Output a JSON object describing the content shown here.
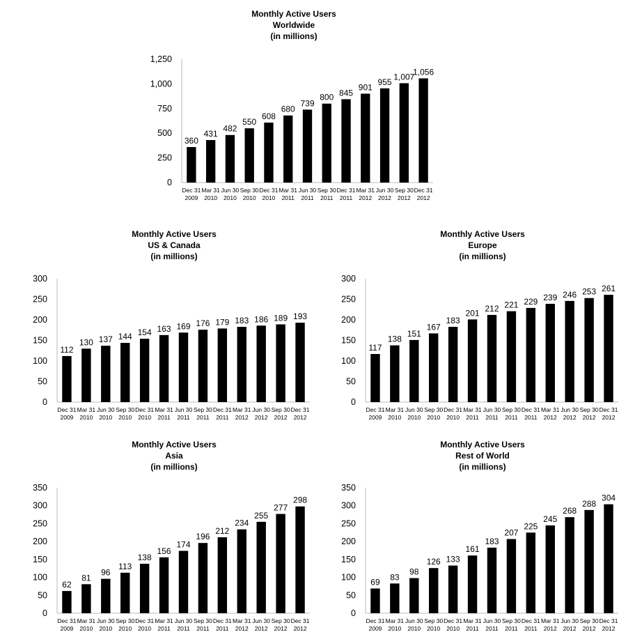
{
  "chart_data": [
    {
      "type": "bar",
      "title": [
        "Monthly Active Users",
        "Worldwide",
        "(in millions)"
      ],
      "categories": [
        [
          "Dec 31",
          "2009"
        ],
        [
          "Mar 31",
          "2010"
        ],
        [
          "Jun 30",
          "2010"
        ],
        [
          "Sep 30",
          "2010"
        ],
        [
          "Dec 31",
          "2010"
        ],
        [
          "Mar 31",
          "2011"
        ],
        [
          "Jun 30",
          "2011"
        ],
        [
          "Sep 30",
          "2011"
        ],
        [
          "Dec 31",
          "2011"
        ],
        [
          "Mar 31",
          "2012"
        ],
        [
          "Jun 30",
          "2012"
        ],
        [
          "Sep 30",
          "2012"
        ],
        [
          "Dec 31",
          "2012"
        ]
      ],
      "values": [
        360,
        431,
        482,
        550,
        608,
        680,
        739,
        800,
        845,
        901,
        955,
        1007,
        1056
      ],
      "ylim": [
        0,
        1250
      ],
      "yticks": [
        0,
        250,
        500,
        750,
        1000,
        1250
      ],
      "grid": false,
      "bar_color": "#000000"
    },
    {
      "type": "bar",
      "title": [
        "Monthly Active Users",
        "US & Canada",
        "(in millions)"
      ],
      "categories": [
        [
          "Dec 31",
          "2009"
        ],
        [
          "Mar 31",
          "2010"
        ],
        [
          "Jun 30",
          "2010"
        ],
        [
          "Sep 30",
          "2010"
        ],
        [
          "Dec 31",
          "2010"
        ],
        [
          "Mar 31",
          "2011"
        ],
        [
          "Jun 30",
          "2011"
        ],
        [
          "Sep 30",
          "2011"
        ],
        [
          "Dec 31",
          "2011"
        ],
        [
          "Mar 31",
          "2012"
        ],
        [
          "Jun 30",
          "2012"
        ],
        [
          "Sep 30",
          "2012"
        ],
        [
          "Dec 31",
          "2012"
        ]
      ],
      "values": [
        112,
        130,
        137,
        144,
        154,
        163,
        169,
        176,
        179,
        183,
        186,
        189,
        193
      ],
      "ylim": [
        0,
        300
      ],
      "yticks": [
        0,
        50,
        100,
        150,
        200,
        250,
        300
      ],
      "grid": false,
      "bar_color": "#000000"
    },
    {
      "type": "bar",
      "title": [
        "Monthly Active Users",
        "Europe",
        "(in millions)"
      ],
      "categories": [
        [
          "Dec 31",
          "2009"
        ],
        [
          "Mar 31",
          "2010"
        ],
        [
          "Jun 30",
          "2010"
        ],
        [
          "Sep 30",
          "2010"
        ],
        [
          "Dec 31",
          "2010"
        ],
        [
          "Mar 31",
          "2011"
        ],
        [
          "Jun 30",
          "2011"
        ],
        [
          "Sep 30",
          "2011"
        ],
        [
          "Dec 31",
          "2011"
        ],
        [
          "Mar 31",
          "2012"
        ],
        [
          "Jun 30",
          "2012"
        ],
        [
          "Sep 30",
          "2012"
        ],
        [
          "Dec 31",
          "2012"
        ]
      ],
      "values": [
        117,
        138,
        151,
        167,
        183,
        201,
        212,
        221,
        229,
        239,
        246,
        253,
        261
      ],
      "ylim": [
        0,
        300
      ],
      "yticks": [
        0,
        50,
        100,
        150,
        200,
        250,
        300
      ],
      "grid": false,
      "bar_color": "#000000"
    },
    {
      "type": "bar",
      "title": [
        "Monthly Active Users",
        "Asia",
        "(in millions)"
      ],
      "categories": [
        [
          "Dec 31",
          "2009"
        ],
        [
          "Mar 31",
          "2010"
        ],
        [
          "Jun 30",
          "2010"
        ],
        [
          "Sep 30",
          "2010"
        ],
        [
          "Dec 31",
          "2010"
        ],
        [
          "Mar 31",
          "2011"
        ],
        [
          "Jun 30",
          "2011"
        ],
        [
          "Sep 30",
          "2011"
        ],
        [
          "Dec 31",
          "2011"
        ],
        [
          "Mar 31",
          "2012"
        ],
        [
          "Jun 30",
          "2012"
        ],
        [
          "Sep 30",
          "2012"
        ],
        [
          "Dec 31",
          "2012"
        ]
      ],
      "values": [
        62,
        81,
        96,
        113,
        138,
        156,
        174,
        196,
        212,
        234,
        255,
        277,
        298
      ],
      "ylim": [
        0,
        350
      ],
      "yticks": [
        0,
        50,
        100,
        150,
        200,
        250,
        300,
        350
      ],
      "grid": false,
      "bar_color": "#000000"
    },
    {
      "type": "bar",
      "title": [
        "Monthly Active Users",
        "Rest of World",
        "(in millions)"
      ],
      "categories": [
        [
          "Dec 31",
          "2009"
        ],
        [
          "Mar 31",
          "2010"
        ],
        [
          "Jun 30",
          "2010"
        ],
        [
          "Sep 30",
          "2010"
        ],
        [
          "Dec 31",
          "2010"
        ],
        [
          "Mar 31",
          "2011"
        ],
        [
          "Jun 30",
          "2011"
        ],
        [
          "Sep 30",
          "2011"
        ],
        [
          "Dec 31",
          "2011"
        ],
        [
          "Mar 31",
          "2012"
        ],
        [
          "Jun 30",
          "2012"
        ],
        [
          "Sep 30",
          "2012"
        ],
        [
          "Dec 31",
          "2012"
        ]
      ],
      "values": [
        69,
        83,
        98,
        126,
        133,
        161,
        183,
        207,
        225,
        245,
        268,
        288,
        304
      ],
      "ylim": [
        0,
        350
      ],
      "yticks": [
        0,
        50,
        100,
        150,
        200,
        250,
        300,
        350
      ],
      "grid": false,
      "bar_color": "#000000"
    }
  ]
}
